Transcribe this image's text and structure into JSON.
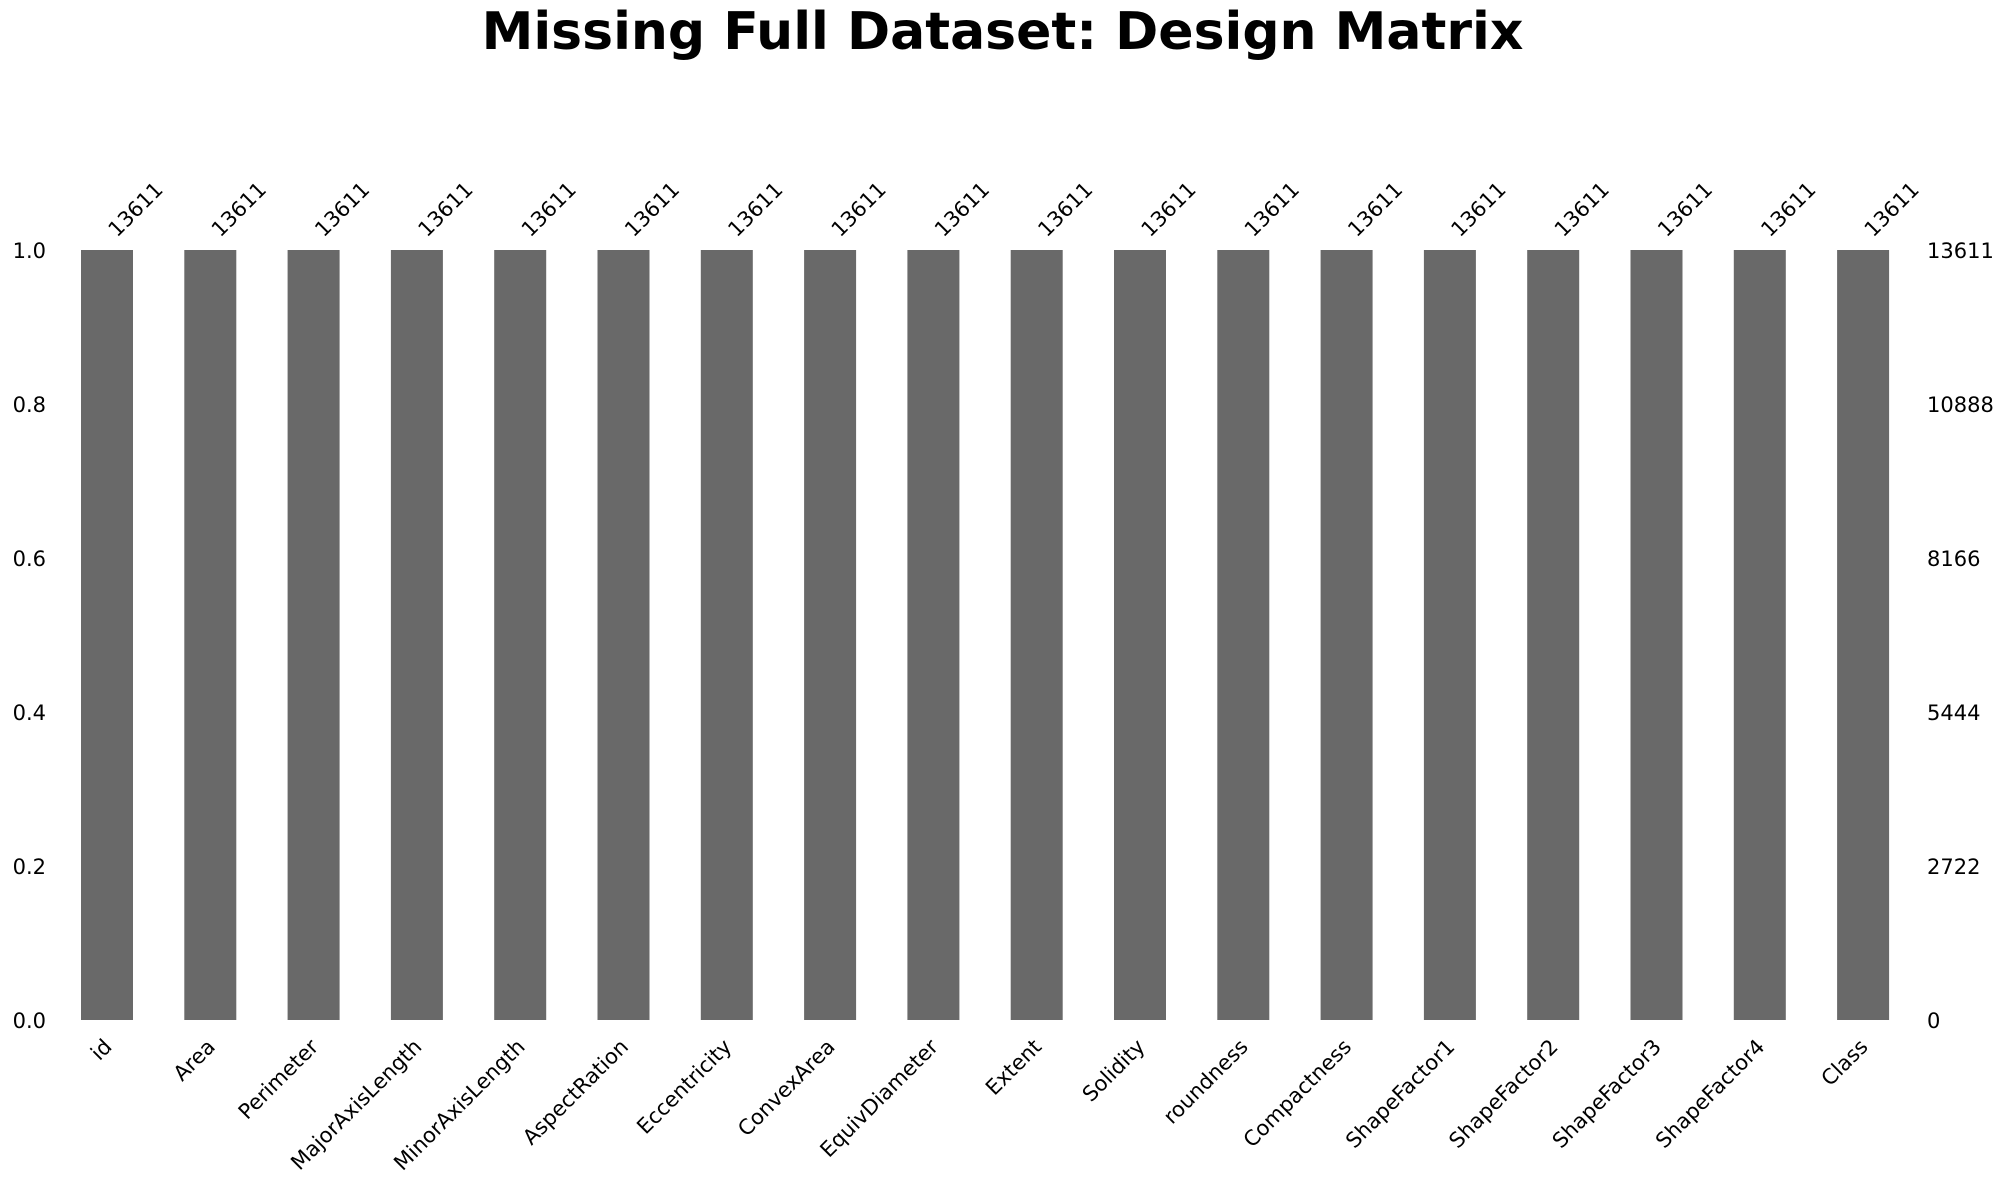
{
  "chart_data": {
    "type": "bar",
    "title": "Missing Full Dataset: Design Matrix",
    "categories": [
      "id",
      "Area",
      "Perimeter",
      "MajorAxisLength",
      "MinorAxisLength",
      "AspectRation",
      "Eccentricity",
      "ConvexArea",
      "EquivDiameter",
      "Extent",
      "Solidity",
      "roundness",
      "Compactness",
      "ShapeFactor1",
      "ShapeFactor2",
      "ShapeFactor3",
      "ShapeFactor4",
      "Class"
    ],
    "values": [
      1.0,
      1.0,
      1.0,
      1.0,
      1.0,
      1.0,
      1.0,
      1.0,
      1.0,
      1.0,
      1.0,
      1.0,
      1.0,
      1.0,
      1.0,
      1.0,
      1.0,
      1.0
    ],
    "counts": [
      "13611",
      "13611",
      "13611",
      "13611",
      "13611",
      "13611",
      "13611",
      "13611",
      "13611",
      "13611",
      "13611",
      "13611",
      "13611",
      "13611",
      "13611",
      "13611",
      "13611",
      "13611"
    ],
    "ylim": [
      0,
      1.0
    ],
    "left_ticks": [
      "0.0",
      "0.2",
      "0.4",
      "0.6",
      "0.8",
      "1.0"
    ],
    "right_ticks": [
      "0",
      "2722",
      "5444",
      "8166",
      "10888",
      "13611"
    ],
    "grid": false,
    "colors": {
      "bar": "#696969"
    }
  }
}
